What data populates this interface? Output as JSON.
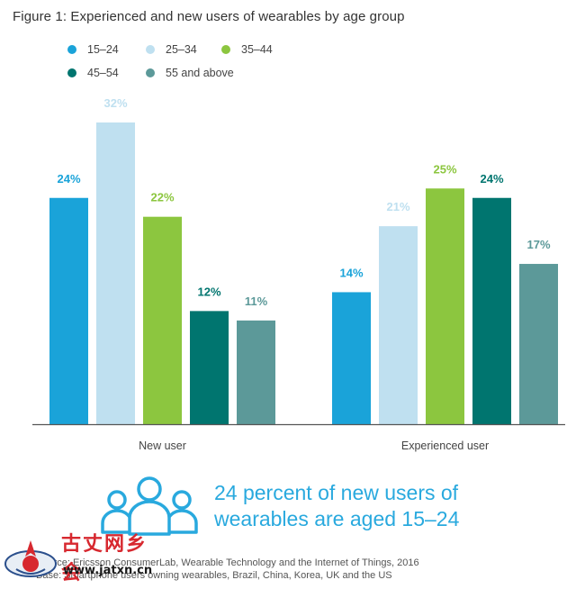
{
  "title": "Figure 1: Experienced and new users of wearables by age group",
  "colors": {
    "axis": "#555555",
    "callout": "#29a9de",
    "watermark_red": "#d7282f"
  },
  "chart_data": {
    "type": "bar",
    "title": "Figure 1: Experienced and new users of wearables by age group",
    "categories": [
      "New user",
      "Experienced user"
    ],
    "series": [
      {
        "name": "15–24",
        "color": "#1aa3d9",
        "values": [
          24,
          14
        ]
      },
      {
        "name": "25–34",
        "color": "#bfe0f0",
        "values": [
          32,
          21
        ]
      },
      {
        "name": "35–44",
        "color": "#8cc63f",
        "values": [
          22,
          25
        ]
      },
      {
        "name": "45–54",
        "color": "#00756f",
        "values": [
          12,
          24
        ]
      },
      {
        "name": "55 and above",
        "color": "#5c9999",
        "values": [
          11,
          17
        ]
      }
    ],
    "value_suffix": "%",
    "ylim": [
      0,
      32
    ],
    "grid": false,
    "legend_position": "top-left"
  },
  "callout": {
    "line1": "24 percent of new users of",
    "line2": "wearables are aged 15–24",
    "icon": "people-group-icon"
  },
  "source": {
    "line1": "Source: Ericsson ConsumerLab, Wearable Technology and the Internet of Things, 2016",
    "line2": "Base: Smartphone users owning wearables, Brazil, China, Korea, UK and the US"
  },
  "watermark": {
    "chars": "古丈网乡会",
    "url": "www.jatxn.cn"
  }
}
